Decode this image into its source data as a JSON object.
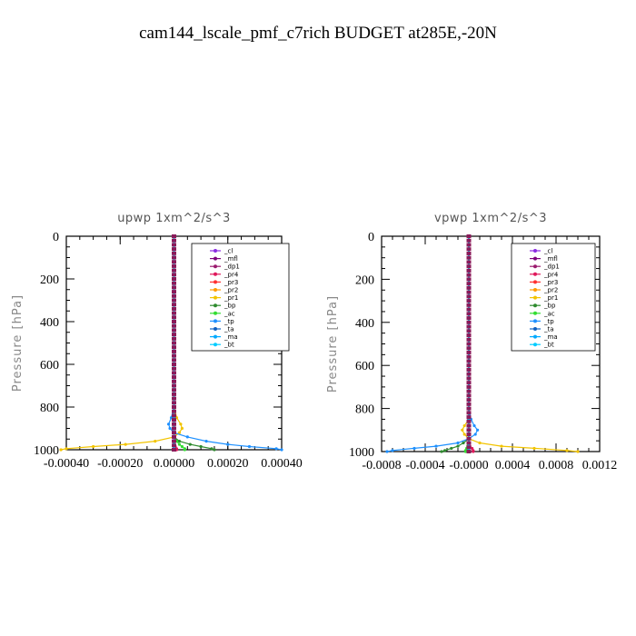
{
  "figure": {
    "title": "cam144_lscale_pmf_c7rich  BUDGET at285E,-20N"
  },
  "chart_data": [
    {
      "type": "line",
      "title": "upwp   1xm^2/s^3",
      "ylabel": "Pressure [hPa]",
      "xlabel": "",
      "xlim": [
        -0.0004,
        0.0004
      ],
      "ylim": [
        1000,
        0
      ],
      "xticks": [
        "-0.00040",
        "-0.00020",
        "0.00000",
        "0.00020",
        "0.00040"
      ],
      "xtick_values": [
        -0.0004,
        -0.0002,
        0.0,
        0.0002,
        0.0004
      ],
      "yticks": [
        "0",
        "200",
        "400",
        "600",
        "800",
        "1000"
      ],
      "ytick_values": [
        0,
        200,
        400,
        600,
        800,
        1000
      ],
      "legend_position": "top-right",
      "pressure": [
        0,
        400,
        800,
        850,
        880,
        900,
        920,
        940,
        960,
        975,
        985,
        995,
        1000
      ],
      "series": [
        {
          "name": "_cl",
          "color": "#8a2be2",
          "values": [
            0,
            0,
            0,
            0,
            0,
            0,
            0,
            0,
            0,
            0,
            0,
            0,
            0
          ]
        },
        {
          "name": "_mfl",
          "color": "#7b007b",
          "values": [
            0,
            0,
            0,
            0,
            0,
            0,
            0,
            0,
            0,
            0,
            0,
            0,
            0
          ]
        },
        {
          "name": "_dp1",
          "color": "#9b1b6e",
          "values": [
            0,
            0,
            0,
            0,
            0,
            0,
            0,
            0,
            0,
            0,
            0,
            0,
            0
          ]
        },
        {
          "name": "_pr4",
          "color": "#e0185a",
          "values": [
            0,
            0,
            0,
            0,
            0,
            0,
            0,
            0,
            0,
            0,
            5e-06,
            1e-05,
            1e-05
          ]
        },
        {
          "name": "_pr3",
          "color": "#ff3030",
          "values": [
            0,
            0,
            0,
            0,
            0,
            0,
            0,
            0,
            0,
            0,
            0,
            0,
            0
          ]
        },
        {
          "name": "_pr2",
          "color": "#ff9a00",
          "values": [
            0,
            0,
            0,
            0,
            0,
            0,
            0,
            0,
            0,
            0,
            0,
            0,
            0
          ]
        },
        {
          "name": "_pr1",
          "color": "#f2c400",
          "values": [
            0,
            0,
            0,
            1e-05,
            2.5e-05,
            3e-05,
            2e-05,
            0,
            -7e-05,
            -0.00018,
            -0.0003,
            -0.0004,
            -0.00042
          ]
        },
        {
          "name": "_bp",
          "color": "#2e8b2e",
          "values": [
            0,
            0,
            0,
            0,
            0,
            0,
            0,
            0,
            2e-05,
            6e-05,
            0.0001,
            0.00014,
            0.00015
          ]
        },
        {
          "name": "_ac",
          "color": "#33dd33",
          "values": [
            0,
            0,
            0,
            0,
            0,
            0,
            0,
            0,
            1e-05,
            2e-05,
            3e-05,
            4e-05,
            4e-05
          ]
        },
        {
          "name": "_tp",
          "color": "#1e90ff",
          "values": [
            0,
            0,
            0,
            -1e-05,
            -2e-05,
            -1.5e-05,
            0,
            5e-05,
            0.00012,
            0.0002,
            0.00028,
            0.00038,
            0.0004
          ]
        },
        {
          "name": "_ta",
          "color": "#1060c0",
          "values": [
            0,
            0,
            0,
            0,
            0,
            0,
            0,
            0,
            0,
            0,
            0,
            0,
            0
          ]
        },
        {
          "name": "_ma",
          "color": "#00aaff",
          "values": [
            0,
            0,
            0,
            0,
            0,
            0,
            0,
            0,
            0,
            0,
            0,
            0,
            0
          ]
        },
        {
          "name": "_bt",
          "color": "#00ccff",
          "values": [
            0,
            0,
            0,
            0,
            0,
            0,
            0,
            0,
            0,
            0,
            0,
            0,
            0
          ]
        }
      ]
    },
    {
      "type": "line",
      "title": "vpwp   1xm^2/s^3",
      "ylabel": "Pressure [hPa]",
      "xlabel": "",
      "xlim": [
        -0.0008,
        0.0012
      ],
      "ylim": [
        1000,
        0
      ],
      "xticks": [
        "-0.0008",
        "-0.0004",
        "-0.0000",
        "0.0004",
        "0.0008",
        "0.0012"
      ],
      "xtick_values": [
        -0.0008,
        -0.0004,
        0.0,
        0.0004,
        0.0008,
        0.0012
      ],
      "yticks": [
        "0",
        "200",
        "400",
        "600",
        "800",
        "1000"
      ],
      "ytick_values": [
        0,
        200,
        400,
        600,
        800,
        1000
      ],
      "legend_position": "top-right",
      "pressure": [
        0,
        400,
        800,
        850,
        880,
        900,
        920,
        940,
        960,
        975,
        985,
        995,
        1000
      ],
      "series": [
        {
          "name": "_cl",
          "color": "#8a2be2",
          "values": [
            0,
            0,
            0,
            0,
            0,
            0,
            0,
            0,
            0,
            0,
            0,
            0,
            0
          ]
        },
        {
          "name": "_mfl",
          "color": "#7b007b",
          "values": [
            0,
            0,
            0,
            0,
            0,
            0,
            0,
            0,
            0,
            0,
            0,
            0,
            0
          ]
        },
        {
          "name": "_dp1",
          "color": "#9b1b6e",
          "values": [
            0,
            0,
            0,
            0,
            0,
            0,
            0,
            0,
            0,
            0,
            0,
            0,
            0
          ]
        },
        {
          "name": "_pr4",
          "color": "#e0185a",
          "values": [
            0,
            0,
            0,
            0,
            0,
            0,
            0,
            0,
            0,
            1e-05,
            3e-05,
            4e-05,
            4e-05
          ]
        },
        {
          "name": "_pr3",
          "color": "#ff3030",
          "values": [
            0,
            0,
            0,
            0,
            0,
            0,
            0,
            0,
            0,
            0,
            0,
            0,
            0
          ]
        },
        {
          "name": "_pr2",
          "color": "#ff9a00",
          "values": [
            0,
            0,
            0,
            0,
            0,
            0,
            0,
            0,
            0,
            0,
            0,
            0,
            0
          ]
        },
        {
          "name": "_pr1",
          "color": "#f2c400",
          "values": [
            0,
            0,
            0,
            0,
            -4e-05,
            -6e-05,
            -4e-05,
            0,
            0.0001,
            0.0003,
            0.0006,
            0.0009,
            0.001
          ]
        },
        {
          "name": "_bp",
          "color": "#2e8b2e",
          "values": [
            0,
            0,
            0,
            0,
            0,
            0,
            0,
            0,
            -5e-05,
            -0.0001,
            -0.00016,
            -0.00022,
            -0.00025
          ]
        },
        {
          "name": "_ac",
          "color": "#33dd33",
          "values": [
            0,
            0,
            0,
            0,
            0,
            0,
            0,
            0,
            0,
            -1e-05,
            -2e-05,
            -3e-05,
            -3e-05
          ]
        },
        {
          "name": "_tp",
          "color": "#1e90ff",
          "values": [
            0,
            0,
            0,
            2e-05,
            5e-05,
            8e-05,
            6e-05,
            0,
            -0.0001,
            -0.0003,
            -0.0005,
            -0.0007,
            -0.00075
          ]
        },
        {
          "name": "_ta",
          "color": "#1060c0",
          "values": [
            0,
            0,
            0,
            0,
            0,
            0,
            0,
            0,
            0,
            0,
            0,
            0,
            0
          ]
        },
        {
          "name": "_ma",
          "color": "#00aaff",
          "values": [
            0,
            0,
            0,
            0,
            0,
            0,
            0,
            0,
            0,
            0,
            0,
            0,
            0
          ]
        },
        {
          "name": "_bt",
          "color": "#00ccff",
          "values": [
            0,
            0,
            0,
            0,
            0,
            0,
            0,
            0,
            0,
            0,
            0,
            0,
            0
          ]
        }
      ]
    }
  ]
}
